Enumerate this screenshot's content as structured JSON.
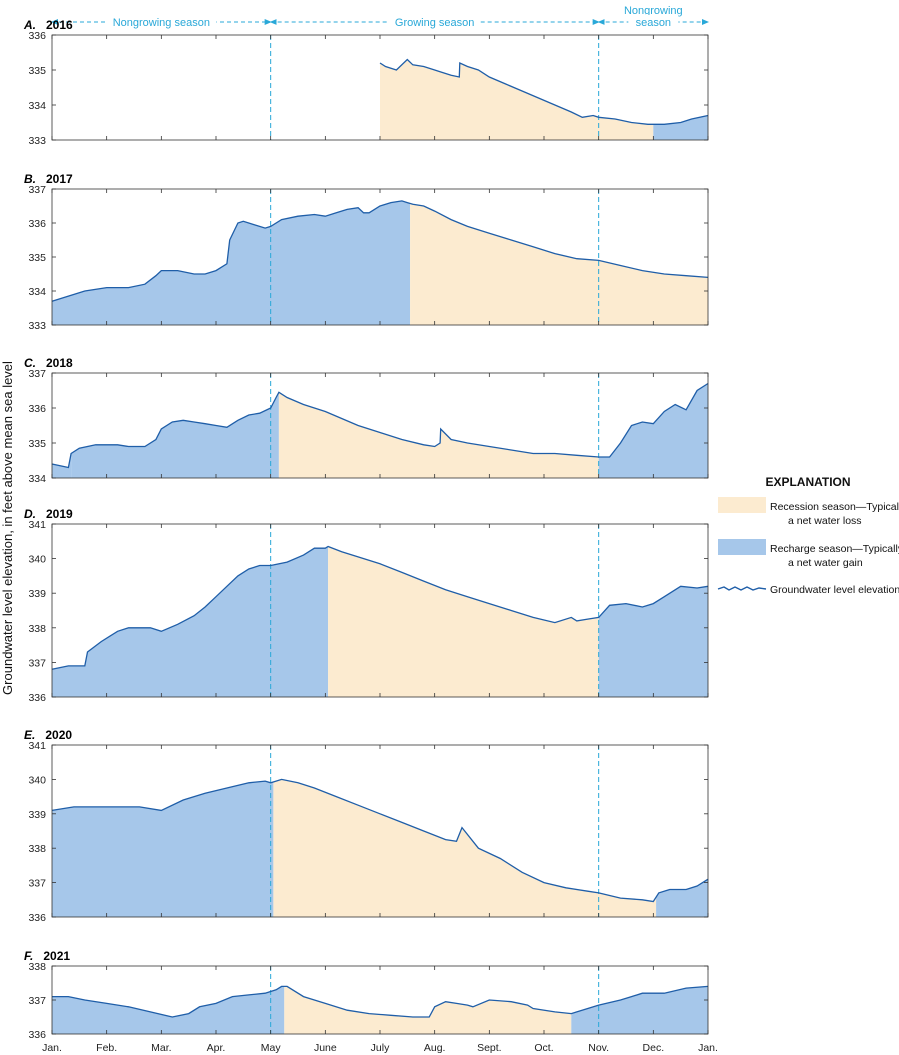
{
  "chart_data": {
    "type": "area",
    "ylabel": "Groundwater level elevation, in feet above mean sea level",
    "x_tick_labels": [
      "Jan.",
      "Feb.",
      "Mar.",
      "Apr.",
      "May",
      "June",
      "July",
      "Aug.",
      "Sept.",
      "Oct.",
      "Nov.",
      "Dec.",
      "Jan."
    ],
    "season_labels": {
      "nongrowing_left": "Nongrowing season",
      "growing": "Growing season",
      "nongrowing_right_line1": "Nongrowing",
      "nongrowing_right_line2": "season"
    },
    "season_boundaries_month": [
      4.0,
      10.0
    ],
    "legend": {
      "title": "EXPLANATION",
      "recession_line1": "Recession season—Typically",
      "recession_line2": "a net water loss",
      "recharge_line1": "Recharge season—Typically",
      "recharge_line2": "a net water gain",
      "line_label": "Groundwater level elevation"
    },
    "colors": {
      "recession": "#fcebd0",
      "recharge": "#a6c7ea",
      "line": "#1f5ea8",
      "season_line": "#29a8d8"
    },
    "panels": [
      {
        "letter": "A.",
        "year": "2016",
        "ylim": [
          333,
          336
        ],
        "yticks": [
          "333",
          "334",
          "335",
          "336"
        ],
        "series_x": [
          6.0,
          6.1,
          6.3,
          6.5,
          6.6,
          6.8,
          7.0,
          7.1,
          7.2,
          7.3,
          7.45,
          7.46,
          7.6,
          7.8,
          8.0,
          8.3,
          8.6,
          8.9,
          9.2,
          9.5,
          9.7,
          9.9,
          10.0,
          10.3,
          10.6,
          10.9,
          11.2,
          11.5,
          11.7,
          12.0
        ],
        "series_y": [
          335.2,
          335.1,
          335.0,
          335.3,
          335.15,
          335.1,
          335.0,
          334.95,
          334.9,
          334.85,
          334.8,
          335.2,
          335.1,
          335.0,
          334.8,
          334.6,
          334.4,
          334.2,
          334.0,
          333.8,
          333.65,
          333.7,
          333.65,
          333.6,
          333.5,
          333.45,
          333.45,
          333.5,
          333.6,
          333.7
        ],
        "segments": [
          {
            "type": "recession",
            "x0": 6.0,
            "x1": 11.0
          },
          {
            "type": "recharge",
            "x0": 11.0,
            "x1": 12.0
          }
        ]
      },
      {
        "letter": "B.",
        "year": "2017",
        "ylim": [
          333,
          337
        ],
        "yticks": [
          "333",
          "334",
          "335",
          "336",
          "337"
        ],
        "series_x": [
          0.0,
          0.3,
          0.6,
          1.0,
          1.4,
          1.7,
          1.9,
          2.0,
          2.3,
          2.6,
          2.8,
          3.0,
          3.2,
          3.25,
          3.4,
          3.5,
          3.7,
          3.9,
          4.0,
          4.2,
          4.5,
          4.8,
          5.0,
          5.2,
          5.4,
          5.6,
          5.7,
          5.8,
          6.0,
          6.2,
          6.4,
          6.5,
          6.6,
          6.8,
          7.0,
          7.3,
          7.6,
          8.0,
          8.4,
          8.8,
          9.2,
          9.6,
          10.0,
          10.4,
          10.8,
          11.2,
          11.6,
          12.0
        ],
        "series_y": [
          333.7,
          333.85,
          334.0,
          334.1,
          334.1,
          334.2,
          334.45,
          334.6,
          334.6,
          334.5,
          334.5,
          334.6,
          334.8,
          335.5,
          336.0,
          336.05,
          335.95,
          335.85,
          335.9,
          336.1,
          336.2,
          336.25,
          336.2,
          336.3,
          336.4,
          336.45,
          336.3,
          336.3,
          336.5,
          336.6,
          336.65,
          336.6,
          336.55,
          336.5,
          336.35,
          336.1,
          335.9,
          335.7,
          335.5,
          335.3,
          335.1,
          334.95,
          334.9,
          334.75,
          334.6,
          334.5,
          334.45,
          334.4
        ],
        "segments": [
          {
            "type": "recharge",
            "x0": 0.0,
            "x1": 6.55
          },
          {
            "type": "recession",
            "x0": 6.55,
            "x1": 12.0
          }
        ]
      },
      {
        "letter": "C.",
        "year": "2018",
        "ylim": [
          334,
          337
        ],
        "yticks": [
          "334",
          "335",
          "336",
          "337"
        ],
        "series_x": [
          0.0,
          0.15,
          0.3,
          0.35,
          0.5,
          0.8,
          1.0,
          1.2,
          1.4,
          1.7,
          1.9,
          2.0,
          2.2,
          2.4,
          2.6,
          2.8,
          3.0,
          3.2,
          3.4,
          3.6,
          3.8,
          4.0,
          4.1,
          4.15,
          4.3,
          4.6,
          5.0,
          5.3,
          5.6,
          6.0,
          6.4,
          6.8,
          7.0,
          7.1,
          7.11,
          7.3,
          7.6,
          8.0,
          8.4,
          8.8,
          9.2,
          9.6,
          10.0,
          10.2,
          10.4,
          10.6,
          10.8,
          11.0,
          11.2,
          11.4,
          11.6,
          11.8,
          12.0
        ],
        "series_y": [
          334.4,
          334.35,
          334.3,
          334.7,
          334.85,
          334.95,
          334.95,
          334.95,
          334.9,
          334.9,
          335.1,
          335.4,
          335.6,
          335.65,
          335.6,
          335.55,
          335.5,
          335.45,
          335.65,
          335.8,
          335.85,
          336.0,
          336.3,
          336.45,
          336.3,
          336.1,
          335.9,
          335.7,
          335.5,
          335.3,
          335.1,
          334.95,
          334.9,
          335.0,
          335.4,
          335.1,
          335.0,
          334.9,
          334.8,
          334.7,
          334.7,
          334.65,
          334.6,
          334.6,
          335.0,
          335.5,
          335.6,
          335.55,
          335.9,
          336.1,
          335.95,
          336.5,
          336.7
        ],
        "segments": [
          {
            "type": "recharge",
            "x0": 0.0,
            "x1": 0.35
          },
          {
            "type": "recharge",
            "x0": 0.35,
            "x1": 4.15
          },
          {
            "type": "recession",
            "x0": 4.15,
            "x1": 10.0
          },
          {
            "type": "recharge",
            "x0": 10.0,
            "x1": 12.0
          }
        ]
      },
      {
        "letter": "D.",
        "year": "2019",
        "ylim": [
          336,
          341
        ],
        "yticks": [
          "336",
          "337",
          "338",
          "339",
          "340",
          "341"
        ],
        "series_x": [
          0.0,
          0.3,
          0.6,
          0.65,
          0.9,
          1.2,
          1.4,
          1.6,
          1.8,
          2.0,
          2.3,
          2.6,
          2.8,
          3.0,
          3.2,
          3.4,
          3.6,
          3.8,
          4.0,
          4.3,
          4.6,
          4.8,
          5.0,
          5.05,
          5.3,
          5.6,
          6.0,
          6.4,
          6.8,
          7.2,
          7.6,
          8.0,
          8.4,
          8.8,
          9.2,
          9.5,
          9.6,
          9.8,
          10.0,
          10.2,
          10.5,
          10.8,
          11.0,
          11.2,
          11.5,
          11.8,
          12.0
        ],
        "series_y": [
          336.8,
          336.9,
          336.9,
          337.3,
          337.6,
          337.9,
          338.0,
          338.0,
          338.0,
          337.9,
          338.1,
          338.35,
          338.6,
          338.9,
          339.2,
          339.5,
          339.7,
          339.8,
          339.8,
          339.9,
          340.1,
          340.3,
          340.3,
          340.35,
          340.2,
          340.05,
          339.85,
          339.6,
          339.35,
          339.1,
          338.9,
          338.7,
          338.5,
          338.3,
          338.15,
          338.3,
          338.2,
          338.25,
          338.3,
          338.65,
          338.7,
          338.6,
          338.7,
          338.9,
          339.2,
          339.15,
          339.2
        ],
        "segments": [
          {
            "type": "recharge",
            "x0": 0.0,
            "x1": 5.05
          },
          {
            "type": "recession",
            "x0": 5.05,
            "x1": 10.0
          },
          {
            "type": "recharge",
            "x0": 10.0,
            "x1": 12.0
          }
        ]
      },
      {
        "letter": "E.",
        "year": "2020",
        "ylim": [
          336,
          341
        ],
        "yticks": [
          "336",
          "337",
          "338",
          "339",
          "340",
          "341"
        ],
        "series_x": [
          0.0,
          0.4,
          0.8,
          1.2,
          1.6,
          2.0,
          2.4,
          2.8,
          3.2,
          3.6,
          3.9,
          4.0,
          4.1,
          4.2,
          4.5,
          4.8,
          5.2,
          5.6,
          6.0,
          6.4,
          6.8,
          7.2,
          7.4,
          7.5,
          7.8,
          8.2,
          8.6,
          9.0,
          9.4,
          9.8,
          10.0,
          10.4,
          10.8,
          11.0,
          11.1,
          11.3,
          11.6,
          11.8,
          12.0
        ],
        "series_y": [
          339.1,
          339.2,
          339.2,
          339.2,
          339.2,
          339.1,
          339.4,
          339.6,
          339.75,
          339.9,
          339.95,
          339.9,
          339.95,
          340.0,
          339.9,
          339.75,
          339.5,
          339.25,
          339.0,
          338.75,
          338.5,
          338.25,
          338.2,
          338.6,
          338.0,
          337.7,
          337.3,
          337.0,
          336.85,
          336.75,
          336.7,
          336.55,
          336.5,
          336.45,
          336.7,
          336.8,
          336.8,
          336.9,
          337.1
        ],
        "segments": [
          {
            "type": "recharge",
            "x0": 0.0,
            "x1": 4.05
          },
          {
            "type": "recession",
            "x0": 4.05,
            "x1": 11.05
          },
          {
            "type": "recharge",
            "x0": 11.05,
            "x1": 12.0
          }
        ]
      },
      {
        "letter": "F.",
        "year": "2021",
        "ylim": [
          336,
          338
        ],
        "yticks": [
          "336",
          "337",
          "338"
        ],
        "series_x": [
          0.0,
          0.3,
          0.6,
          1.0,
          1.4,
          1.8,
          2.2,
          2.5,
          2.7,
          3.0,
          3.3,
          3.6,
          3.9,
          4.1,
          4.2,
          4.3,
          4.6,
          5.0,
          5.4,
          5.8,
          6.2,
          6.6,
          6.9,
          7.0,
          7.2,
          7.4,
          7.6,
          7.7,
          8.0,
          8.4,
          8.7,
          8.8,
          9.2,
          9.5,
          9.6,
          10.0,
          10.4,
          10.6,
          10.8,
          11.2,
          11.6,
          12.0
        ],
        "series_y": [
          337.1,
          337.1,
          337.0,
          336.9,
          336.8,
          336.65,
          336.5,
          336.6,
          336.8,
          336.9,
          337.1,
          337.15,
          337.2,
          337.3,
          337.4,
          337.4,
          337.1,
          336.9,
          336.7,
          336.6,
          336.55,
          336.5,
          336.5,
          336.8,
          336.95,
          336.9,
          336.85,
          336.8,
          337.0,
          336.95,
          336.85,
          336.75,
          336.65,
          336.6,
          336.65,
          336.85,
          337.0,
          337.1,
          337.2,
          337.2,
          337.35,
          337.4
        ],
        "segments": [
          {
            "type": "recharge",
            "x0": 0.0,
            "x1": 4.25
          },
          {
            "type": "recession",
            "x0": 4.25,
            "x1": 9.5
          },
          {
            "type": "recharge",
            "x0": 9.5,
            "x1": 12.0
          }
        ]
      }
    ]
  }
}
